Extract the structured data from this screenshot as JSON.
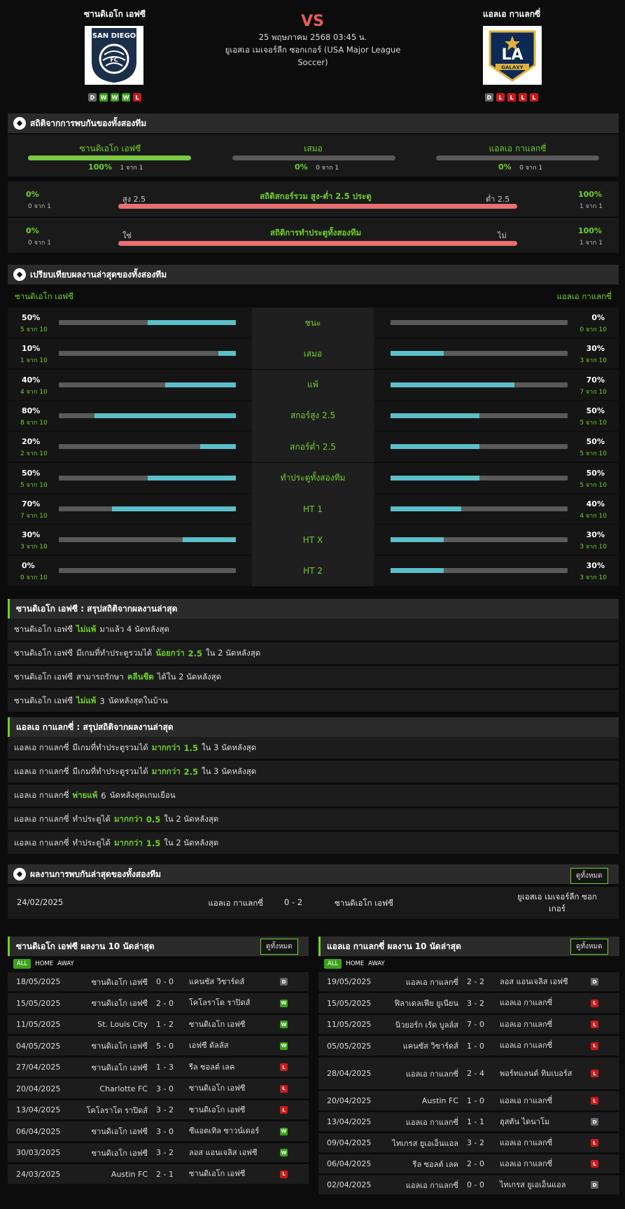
{
  "header": {
    "home_team": "ซานดิเอโก เอฟซี",
    "away_team": "แอลเอ กาแลกซี่",
    "vs": "VS",
    "date": "25 พฤษภาคม 2568 03:45 น.",
    "league": "ยูเอสเอ เมเจอร์ลีก ซอกเกอร์ (USA Major League Soccer)",
    "home_logo_text": "SAN DIEGO",
    "away_logo_text": "LA",
    "away_logo_sub": "GALAXY",
    "home_form": [
      "D",
      "W",
      "W",
      "W",
      "L"
    ],
    "away_form": [
      "D",
      "L",
      "L",
      "L",
      "L"
    ]
  },
  "h2h_stats": {
    "title": "สถิติจากการพบกันของทั้งสองทีม",
    "cols": [
      {
        "label": "ซานดิเอโก เอฟซี",
        "pct": "100%",
        "count": "1 จาก 1",
        "fill": 1.0
      },
      {
        "label": "เสมอ",
        "pct": "0%",
        "count": "0 จาก 1",
        "fill": 0
      },
      {
        "label": "แอลเอ กาแลกซี่",
        "pct": "0%",
        "count": "0 จาก 1",
        "fill": 0
      }
    ],
    "ou": {
      "title": "สถิติสกอร์รวม สูง-ต่ำ 2.5 ประตู",
      "left_label": "สูง 2.5",
      "right_label": "ต่ำ 2.5",
      "left_pct": "0%",
      "left_count": "0 จาก 1",
      "right_pct": "100%",
      "right_count": "1 จาก 1"
    },
    "btts": {
      "title": "สถิติการทำประตูทั้งสองทีม",
      "left_label": "ใช่",
      "right_label": "ไม่",
      "left_pct": "0%",
      "left_count": "0 จาก 1",
      "right_pct": "100%",
      "right_count": "1 จาก 1"
    }
  },
  "compare": {
    "title": "เปรียบเทียบผลงานล่าสุดของทั้งสองทีม",
    "home": "ซานดิเอโก เอฟซี",
    "away": "แอลเอ กาแลกซี่",
    "rows": [
      {
        "label": "ชนะ",
        "hp": "50%",
        "hc": "5 จาก 10",
        "hv": 0.5,
        "ap": "0%",
        "ac": "0 จาก 10",
        "av": 0
      },
      {
        "label": "เสมอ",
        "hp": "10%",
        "hc": "1 จาก 10",
        "hv": 0.1,
        "ap": "30%",
        "ac": "3 จาก 10",
        "av": 0.3
      },
      {
        "label": "แพ้",
        "hp": "40%",
        "hc": "4 จาก 10",
        "hv": 0.4,
        "ap": "70%",
        "ac": "7 จาก 10",
        "av": 0.7
      },
      {
        "label": "สกอร์สูง 2.5",
        "hp": "80%",
        "hc": "8 จาก 10",
        "hv": 0.8,
        "ap": "50%",
        "ac": "5 จาก 10",
        "av": 0.5
      },
      {
        "label": "สกอร์ต่ำ 2.5",
        "hp": "20%",
        "hc": "2 จาก 10",
        "hv": 0.2,
        "ap": "50%",
        "ac": "5 จาก 10",
        "av": 0.5
      },
      {
        "label": "ทำประตูทั้งสองทีม",
        "hp": "50%",
        "hc": "5 จาก 10",
        "hv": 0.5,
        "ap": "50%",
        "ac": "5 จาก 10",
        "av": 0.5
      },
      {
        "label": "HT 1",
        "hp": "70%",
        "hc": "7 จาก 10",
        "hv": 0.7,
        "ap": "40%",
        "ac": "4 จาก 10",
        "av": 0.4
      },
      {
        "label": "HT X",
        "hp": "30%",
        "hc": "3 จาก 10",
        "hv": 0.3,
        "ap": "30%",
        "ac": "3 จาก 10",
        "av": 0.3
      },
      {
        "label": "HT 2",
        "hp": "0%",
        "hc": "0 จาก 10",
        "hv": 0,
        "ap": "30%",
        "ac": "3 จาก 10",
        "av": 0.3
      }
    ]
  },
  "home_summary": {
    "title": "ซานดิเอโก เอฟซี : สรุปสถิติจากผลงานล่าสุด",
    "rows": [
      [
        "ซานดิเอโก เอฟซี",
        "ไม่แพ้",
        "มาแล้ว 4 นัดหลังสุด"
      ],
      [
        "ซานดิเอโก เอฟซี",
        "มีเกมที่ทำประตูรวมได้",
        "น้อยกว่า",
        "2.5",
        "ใน 2 นัดหลังสุด"
      ],
      [
        "ซานดิเอโก เอฟซี",
        "สามารถรักษา",
        "คลีนชีต",
        "ได้ใน 2 นัดหลังสุด"
      ],
      [
        "ซานดิเอโก เอฟซี",
        "ไม่แพ้",
        "3",
        "นัดหลังสุดในบ้าน"
      ]
    ]
  },
  "away_summary": {
    "title": "แอลเอ กาแลกซี่ : สรุปสถิติจากผลงานล่าสุด",
    "rows": [
      [
        "แอลเอ กาแลกซี่",
        "มีเกมที่ทำประตูรวมได้",
        "มากกว่า",
        "1.5",
        "ใน 3 นัดหลังสุด"
      ],
      [
        "แอลเอ กาแลกซี่",
        "มีเกมที่ทำประตูรวมได้",
        "มากกว่า",
        "2.5",
        "ใน 3 นัดหลังสุด"
      ],
      [
        "แอลเอ กาแลกซี่",
        "พ่ายแพ้",
        "6",
        "นัดหลังสุดเกมเยือน"
      ],
      [
        "แอลเอ กาแลกซี่",
        "ทำประตูได้",
        "มากกว่า",
        "0.5",
        "ใน 2 นัดหลังสุด"
      ],
      [
        "แอลเอ กาแลกซี่",
        "ทำประตูได้",
        "มากกว่า",
        "1.5",
        "ใน 2 นัดหลังสุด"
      ]
    ]
  },
  "h2h_results": {
    "title": "ผลงานการพบกันล่าสุดของทั้งสองทีม",
    "view_all": "ดูทั้งหมด",
    "rows": [
      {
        "date": "24/02/2025",
        "home": "แอลเอ กาแลกซี่",
        "score": "0 - 2",
        "away": "ซานดิเอโก เอฟซี",
        "league": "ยูเอสเอ เมเจอร์ลีก ซอกเกอร์"
      }
    ]
  },
  "home_recent": {
    "title": "ซานดิเอโก เอฟซี ผลงาน 10 นัดล่าสุด",
    "view_all": "ดูทั้งหมด",
    "tabs": [
      "ALL",
      "HOME",
      "AWAY"
    ],
    "rows": [
      {
        "date": "18/05/2025",
        "home": "ซานดิเอโก เอฟซี",
        "score": "0 - 0",
        "away": "แคนซัส วิซาร์ดส์",
        "res": "D"
      },
      {
        "date": "15/05/2025",
        "home": "ซานดิเอโก เอฟซี",
        "score": "2 - 0",
        "away": "โคโลราโด ราปิดส์",
        "res": "W"
      },
      {
        "date": "11/05/2025",
        "home": "St. Louis City",
        "score": "1 - 2",
        "away": "ซานดิเอโก เอฟซี",
        "res": "W"
      },
      {
        "date": "04/05/2025",
        "home": "ซานดิเอโก เอฟซี",
        "score": "5 - 0",
        "away": "เอฟซี ดัลลัส",
        "res": "W"
      },
      {
        "date": "27/04/2025",
        "home": "ซานดิเอโก เอฟซี",
        "score": "1 - 3",
        "away": "รีล ซอลต์ เลค",
        "res": "L"
      },
      {
        "date": "20/04/2025",
        "home": "Charlotte FC",
        "score": "3 - 0",
        "away": "ซานดิเอโก เอฟซี",
        "res": "L"
      },
      {
        "date": "13/04/2025",
        "home": "โคโลราโด ราปิดส์",
        "score": "3 - 2",
        "away": "ซานดิเอโก เอฟซี",
        "res": "L"
      },
      {
        "date": "06/04/2025",
        "home": "ซานดิเอโก เอฟซี",
        "score": "3 - 0",
        "away": "ซีแอตเทิล ซาวน์เดอร์",
        "res": "W"
      },
      {
        "date": "30/03/2025",
        "home": "ซานดิเอโก เอฟซี",
        "score": "3 - 2",
        "away": "ลอส แอนเจลิส เอฟซี",
        "res": "W"
      },
      {
        "date": "24/03/2025",
        "home": "Austin FC",
        "score": "2 - 1",
        "away": "ซานดิเอโก เอฟซี",
        "res": "L"
      }
    ]
  },
  "away_recent": {
    "title": "แอลเอ กาแลกซี่ ผลงาน 10 นัดล่าสุด",
    "view_all": "ดูทั้งหมด",
    "tabs": [
      "ALL",
      "HOME",
      "AWAY"
    ],
    "rows": [
      {
        "date": "19/05/2025",
        "home": "แอลเอ กาแลกซี่",
        "score": "2 - 2",
        "away": "ลอส แอนเจลิส เอฟซี",
        "res": "D"
      },
      {
        "date": "15/05/2025",
        "home": "ฟิลาเดลเฟีย ยูเนียน",
        "score": "3 - 2",
        "away": "แอลเอ กาแลกซี่",
        "res": "L"
      },
      {
        "date": "11/05/2025",
        "home": "นิวยอร์ก เร้ด บูลล์ส",
        "score": "7 - 0",
        "away": "แอลเอ กาแลกซี่",
        "res": "L"
      },
      {
        "date": "05/05/2025",
        "home": "แคนซัส วิซาร์ดส์",
        "score": "1 - 0",
        "away": "แอลเอ กาแลกซี่",
        "res": "L"
      },
      {
        "date": "28/04/2025",
        "home": "แอลเอ กาแลกซี่",
        "score": "2 - 4",
        "away": "พอร์ทแลนด์ ทิมเบอร์ส",
        "res": "L"
      },
      {
        "date": "20/04/2025",
        "home": "Austin FC",
        "score": "1 - 0",
        "away": "แอลเอ กาแลกซี่",
        "res": "L"
      },
      {
        "date": "13/04/2025",
        "home": "แอลเอ กาแลกซี่",
        "score": "1 - 1",
        "away": "ฮุสตัน ไดนาโม",
        "res": "D"
      },
      {
        "date": "09/04/2025",
        "home": "ไทเกรส ยูเอเอ็นแอล",
        "score": "3 - 2",
        "away": "แอลเอ กาแลกซี่",
        "res": "L"
      },
      {
        "date": "06/04/2025",
        "home": "รีล ซอลต์ เลค",
        "score": "2 - 0",
        "away": "แอลเอ กาแลกซี่",
        "res": "L"
      },
      {
        "date": "02/04/2025",
        "home": "แอลเอ กาแลกซี่",
        "score": "0 - 0",
        "away": "ไทเกรส ยูเอเอ็นแอล",
        "res": "D"
      }
    ]
  }
}
